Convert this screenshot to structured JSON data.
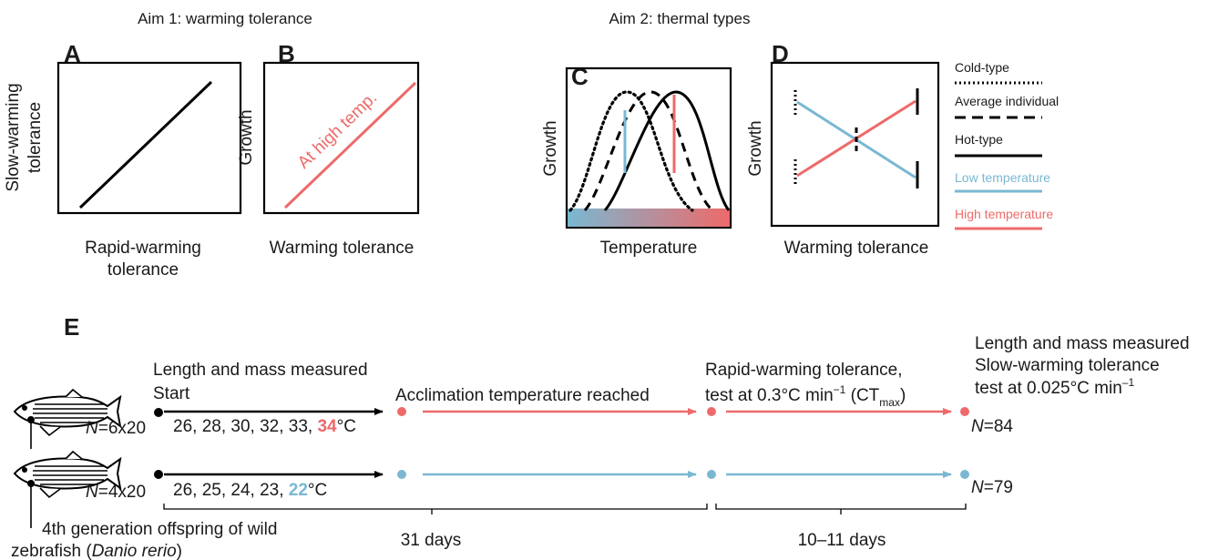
{
  "aims": {
    "aim1_title": "Aim 1: warming tolerance",
    "aim2_title": "Aim 2: thermal types"
  },
  "panels": {
    "A": {
      "letter": "A",
      "ylabel_line1": "Slow-warming",
      "ylabel_line2": "tolerance",
      "xlabel_line1": "Rapid-warming",
      "xlabel_line2": "tolerance"
    },
    "B": {
      "letter": "B",
      "ylabel": "Growth",
      "xlabel": "Warming tolerance",
      "line_label": "At high temp."
    },
    "C": {
      "letter": "C",
      "ylabel": "Growth",
      "xlabel": "Temperature"
    },
    "D": {
      "letter": "D",
      "ylabel": "Growth",
      "xlabel": "Warming tolerance"
    },
    "E": {
      "letter": "E"
    }
  },
  "legend": {
    "cold_type": "Cold-type",
    "average": "Average individual",
    "hot_type": "Hot-type",
    "low_temp": "Low temperature",
    "high_temp": "High temperature"
  },
  "colors": {
    "warm": "#ee6a6a",
    "cool": "#7ab8d2",
    "ink": "#1a1a1a"
  },
  "timeline": {
    "start_line1": "Length and mass measured",
    "start_line2": "Start",
    "acclimation": "Acclimation temperature reached",
    "rapid_line1": "Rapid-warming tolerance,",
    "rapid_line2_prefix": "test at 0.3°C min",
    "rapid_sup": "−1",
    "rapid_ct_open": " (CT",
    "rapid_ct_sub": "max",
    "rapid_ct_close": ")",
    "end_line1": "Length and mass measured",
    "end_line2": "Slow-warming tolerance",
    "end_line3_prefix": "test at 0.025°C min",
    "end_sup": "–1",
    "hot_n_italic": "N",
    "hot_n_rest": "=6x20",
    "cold_n_italic": "N",
    "cold_n_rest": "=4x20",
    "hot_temps_prefix": "26, 28, 30, 32, 33, ",
    "hot_temps_final": "34",
    "cold_temps_prefix": "26, 25, 24, 23, ",
    "cold_temps_final": "22",
    "degC": "°C",
    "hot_final_n_italic": "N",
    "hot_final_n_rest": "=84",
    "cold_final_n_italic": "N",
    "cold_final_n_rest": "=79",
    "period1": "31 days",
    "period2": "10–11 days",
    "origin_line1": "4th generation offspring of wild",
    "origin_line2_prefix": "zebrafish (",
    "origin_species": "Danio rerio",
    "origin_line2_suffix": ")"
  }
}
